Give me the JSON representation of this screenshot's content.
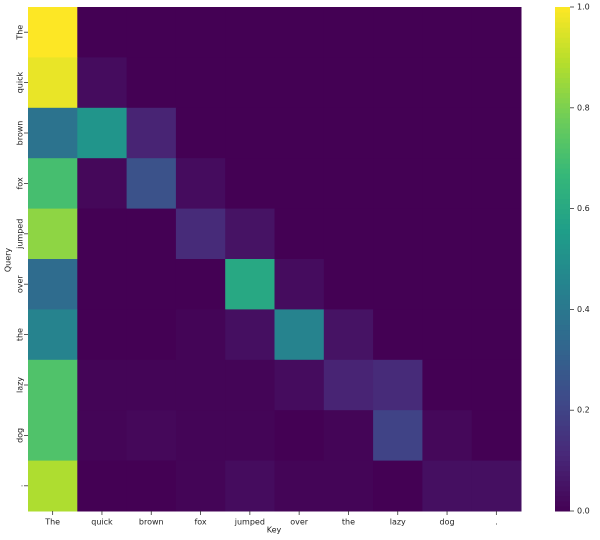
{
  "chart_data": {
    "type": "heatmap",
    "colormap": "viridis",
    "xlabel": "Key",
    "ylabel": "Query",
    "x": [
      "The",
      "quick",
      "brown",
      "fox",
      "jumped",
      "over",
      "the",
      "lazy",
      "dog",
      "."
    ],
    "y": [
      "The",
      "quick",
      "brown",
      "fox",
      "jumped",
      "over",
      "the",
      "lazy",
      "dog",
      "."
    ],
    "values": [
      [
        1.0,
        0,
        0,
        0,
        0,
        0,
        0,
        0,
        0,
        0
      ],
      [
        0.97,
        0.03,
        0,
        0,
        0,
        0,
        0,
        0,
        0,
        0
      ],
      [
        0.38,
        0.52,
        0.1,
        0,
        0,
        0,
        0,
        0,
        0,
        0
      ],
      [
        0.7,
        0.02,
        0.25,
        0.03,
        0,
        0,
        0,
        0,
        0,
        0
      ],
      [
        0.83,
        0,
        0,
        0.12,
        0.05,
        0,
        0,
        0,
        0,
        0
      ],
      [
        0.35,
        0,
        0,
        0,
        0.6,
        0.03,
        0,
        0,
        0,
        0
      ],
      [
        0.45,
        0,
        0,
        0.01,
        0.04,
        0.45,
        0.05,
        0,
        0,
        0
      ],
      [
        0.72,
        0.01,
        0.01,
        0.01,
        0.01,
        0.03,
        0.1,
        0.12,
        0,
        0
      ],
      [
        0.72,
        0.01,
        0.02,
        0.01,
        0.01,
        0,
        0.01,
        0.2,
        0.02,
        0
      ],
      [
        0.88,
        0,
        0,
        0.01,
        0.03,
        0.01,
        0.01,
        0,
        0.04,
        0.04
      ]
    ],
    "zlim": [
      0,
      1
    ],
    "zticks": [
      {
        "value": 0,
        "label": "0.0"
      },
      {
        "value": 0.2,
        "label": "0.2"
      },
      {
        "value": 0.4,
        "label": "0.4"
      },
      {
        "value": 0.6,
        "label": "0.6"
      },
      {
        "value": 0.8,
        "label": "0.8"
      },
      {
        "value": 1,
        "label": "1.0"
      }
    ]
  }
}
